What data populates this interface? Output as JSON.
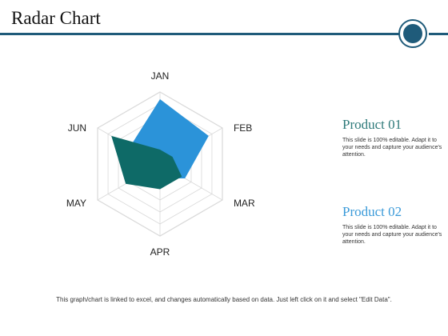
{
  "title": "Radar Chart",
  "colors": {
    "accent": "#1f5b7a",
    "product1": "#2b93d9",
    "product2": "#0e6a67",
    "grid": "#d9d9d9"
  },
  "legend": [
    {
      "name": "Product 01",
      "description": "This slide is 100% editable. Adapt it to your needs and capture your audience's attention."
    },
    {
      "name": "Product 02",
      "description": "This slide is 100% editable. Adapt it to your needs and capture your audience's attention."
    }
  ],
  "footer": "This graph/chart is linked to excel, and changes automatically based on data. Just left click on it and select \"Edit Data\".",
  "chart_data": {
    "type": "radar",
    "categories": [
      "JAN",
      "FEB",
      "MAR",
      "APR",
      "MAY",
      "JUN"
    ],
    "range": [
      0,
      100
    ],
    "rings": 6,
    "grid": true,
    "legend_position": "right",
    "series": [
      {
        "name": "Product 01",
        "values": [
          90,
          78,
          40,
          20,
          30,
          48
        ]
      },
      {
        "name": "Product 02",
        "values": [
          20,
          20,
          35,
          35,
          55,
          78
        ]
      }
    ]
  }
}
